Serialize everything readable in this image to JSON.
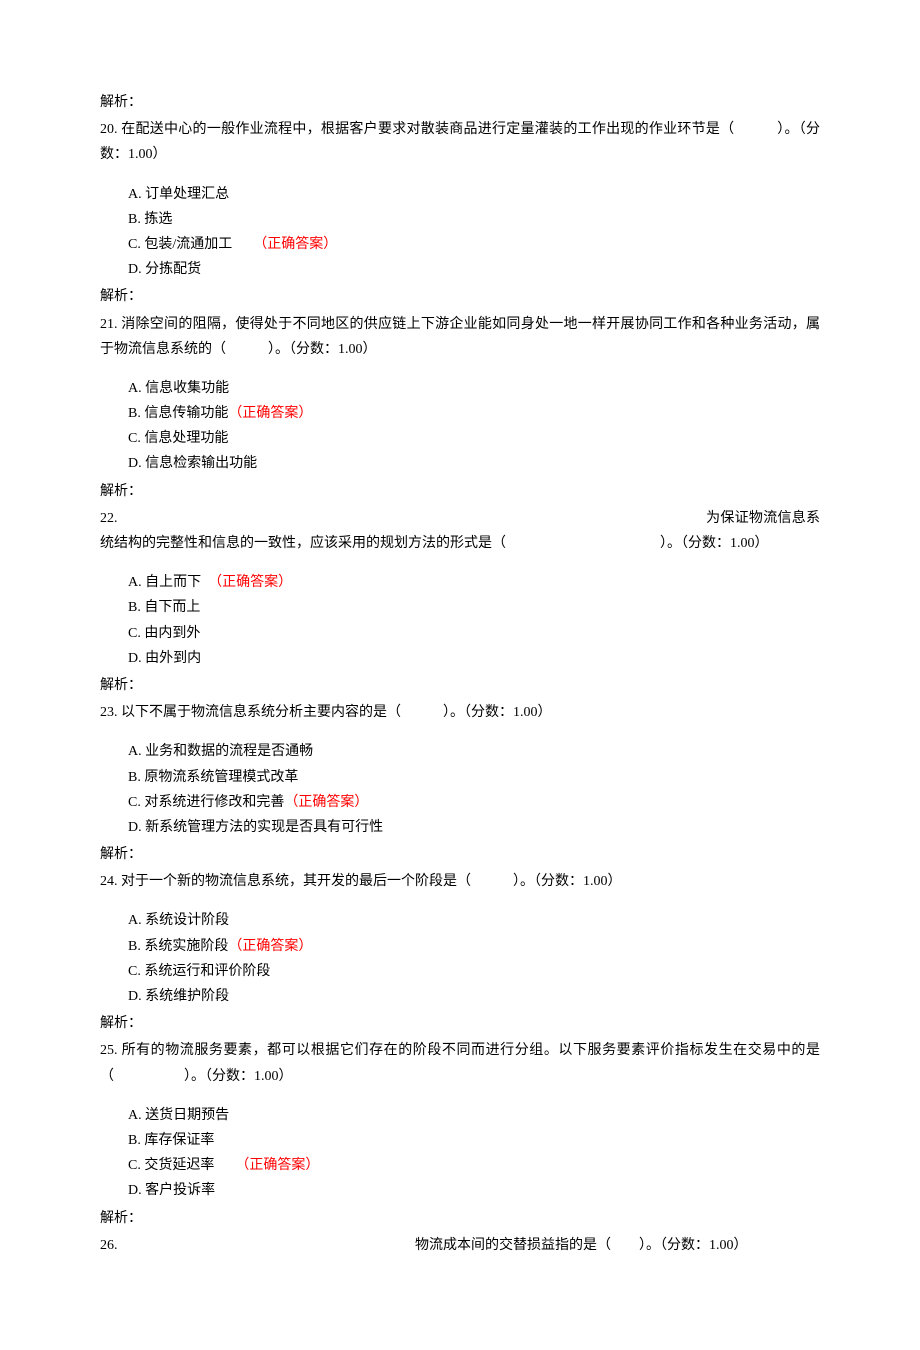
{
  "pre_analysis": "解析：",
  "questions": [
    {
      "num": "20.",
      "text": "在配送中心的一般作业流程中，根据客户要求对散装商品进行定量灌装的工作出现的作业环节是（　　　）。（分数：1.00）",
      "options": [
        {
          "label": "A. 订单处理汇总",
          "correct": false,
          "gap": ""
        },
        {
          "label": "B. 拣选",
          "correct": false,
          "gap": ""
        },
        {
          "label": "C. 包装/流通加工",
          "correct": true,
          "gap": "　　"
        },
        {
          "label": "D. 分拣配货",
          "correct": false,
          "gap": ""
        }
      ],
      "analysis": "解析："
    },
    {
      "num": "21.",
      "text": "消除空间的阻隔，使得处于不同地区的供应链上下游企业能如同身处一地一样开展协同工作和各种业务活动，属于物流信息系统的（　　　）。（分数：1.00）",
      "options": [
        {
          "label": "A. 信息收集功能",
          "correct": false,
          "gap": ""
        },
        {
          "label": "B. 信息传输功能",
          "correct": true,
          "gap": ""
        },
        {
          "label": "C. 信息处理功能",
          "correct": false,
          "gap": ""
        },
        {
          "label": "D. 信息检索输出功能",
          "correct": false,
          "gap": ""
        }
      ],
      "analysis": "解析："
    },
    {
      "num": "22.",
      "text": "　　　　　　　　　　　　　　　　　　　　　　　　　　　　　　　　　　　　　　　　　为保证物流信息系统结构的完整性和信息的一致性，应该采用的规划方法的形式是（　　　　　　　　　　　）。（分数：1.00）",
      "options": [
        {
          "label": "A. 自上而下",
          "correct": true,
          "gap": "　"
        },
        {
          "label": "B. 自下而上",
          "correct": false,
          "gap": ""
        },
        {
          "label": "C. 由内到外",
          "correct": false,
          "gap": ""
        },
        {
          "label": "D. 由外到内",
          "correct": false,
          "gap": ""
        }
      ],
      "analysis": "解析："
    },
    {
      "num": "23.",
      "text": "以下不属于物流信息系统分析主要内容的是（　　　）。（分数：1.00）",
      "options": [
        {
          "label": "A. 业务和数据的流程是否通畅",
          "correct": false,
          "gap": ""
        },
        {
          "label": "B. 原物流系统管理模式改革",
          "correct": false,
          "gap": ""
        },
        {
          "label": "C. 对系统进行修改和完善",
          "correct": true,
          "gap": ""
        },
        {
          "label": "D. 新系统管理方法的实现是否具有可行性",
          "correct": false,
          "gap": ""
        }
      ],
      "analysis": "解析："
    },
    {
      "num": "24.",
      "text": "对于一个新的物流信息系统，其开发的最后一个阶段是（　　　）。（分数：1.00）",
      "options": [
        {
          "label": "A. 系统设计阶段",
          "correct": false,
          "gap": ""
        },
        {
          "label": "B. 系统实施阶段",
          "correct": true,
          "gap": ""
        },
        {
          "label": "C. 系统运行和评价阶段",
          "correct": false,
          "gap": ""
        },
        {
          "label": "D. 系统维护阶段",
          "correct": false,
          "gap": ""
        }
      ],
      "analysis": "解析："
    },
    {
      "num": "25.",
      "text": "所有的物流服务要素，都可以根据它们存在的阶段不同而进行分组。以下服务要素评价指标发生在交易中的是（　　　　　）。（分数：1.00）",
      "options": [
        {
          "label": "A. 送货日期预告",
          "correct": false,
          "gap": ""
        },
        {
          "label": "B. 库存保证率",
          "correct": false,
          "gap": ""
        },
        {
          "label": "C. 交货延迟率",
          "correct": true,
          "gap": "　　"
        },
        {
          "label": "D. 客户投诉率",
          "correct": false,
          "gap": ""
        }
      ],
      "analysis": "解析："
    },
    {
      "num": "26.",
      "text": "　　　　　　　　　　　　　　　　　　　　　物流成本间的交替损益指的是（　　）。（分数：1.00）",
      "options": [],
      "analysis": ""
    }
  ],
  "correct_label": "（正确答案）"
}
